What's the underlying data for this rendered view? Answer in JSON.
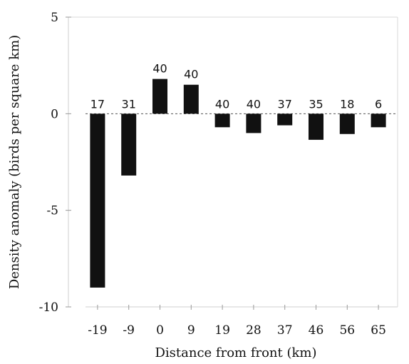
{
  "chart_data": {
    "type": "bar",
    "categories": [
      "-19",
      "-9",
      "0",
      "9",
      "19",
      "28",
      "37",
      "46",
      "56",
      "65"
    ],
    "values": [
      -9.0,
      -3.2,
      1.8,
      1.5,
      -0.7,
      -1.0,
      -0.6,
      -1.35,
      -1.05,
      -0.7
    ],
    "counts": [
      "17",
      "31",
      "40",
      "40",
      "40",
      "40",
      "37",
      "35",
      "18",
      "6"
    ],
    "title": "",
    "xlabel": "Distance from front (km)",
    "ylabel": "Density anomaly (birds per square km)",
    "ylim": [
      -10,
      5
    ],
    "yticks": [
      "5",
      "0",
      "-5",
      "-10"
    ],
    "zero_line": "dashed",
    "grid": false,
    "bar_color": "#111111"
  }
}
